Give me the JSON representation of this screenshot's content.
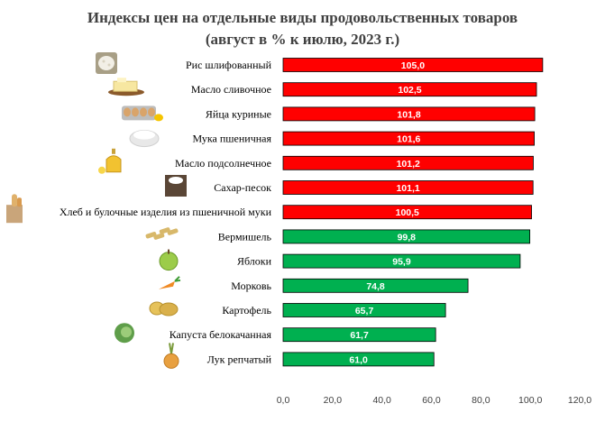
{
  "title_line1": "Индексы цен на отдельные виды продовольственных товаров",
  "title_line2": "(август в % к июлю, 2023 г.)",
  "colors": {
    "above_100": "#ff0000",
    "below_100": "#00b050",
    "bar_border": "#000000",
    "value_text": "#ffffff",
    "label_text": "#000000"
  },
  "chart_data": {
    "type": "bar",
    "orientation": "horizontal",
    "title": "Индексы цен на отдельные виды продовольственных товаров (август в % к июлю, 2023 г.)",
    "categories": [
      "Рис шлифованный",
      "Масло сливочное",
      "Яйца куриные",
      "Мука пшеничная",
      "Масло подсолнечное",
      "Сахар-песок",
      "Хлеб и булочные изделия из пшеничной муки",
      "Вермишель",
      "Яблоки",
      "Морковь",
      "Картофель",
      "Капуста белокачанная",
      "Лук репчатый"
    ],
    "values": [
      105.0,
      102.5,
      101.8,
      101.6,
      101.2,
      101.1,
      100.5,
      99.8,
      95.9,
      74.8,
      65.7,
      61.7,
      61.0
    ],
    "value_labels": [
      "105,0",
      "102,5",
      "101,8",
      "101,6",
      "101,2",
      "101,1",
      "100,5",
      "99,8",
      "95,9",
      "74,8",
      "65,7",
      "61,7",
      "61,0"
    ],
    "icons": [
      "rice-icon",
      "butter-icon",
      "eggs-icon",
      "flour-icon",
      "sunflower-oil-icon",
      "sugar-icon",
      "bread-icon",
      "pasta-icon",
      "apple-icon",
      "carrot-icon",
      "potato-icon",
      "cabbage-icon",
      "onion-icon"
    ],
    "xlim": [
      0,
      120
    ],
    "xticks": [
      "0,0",
      "20,0",
      "40,0",
      "60,0",
      "80,0",
      "100,0",
      "120,0"
    ],
    "grid": false,
    "legend": "none"
  }
}
